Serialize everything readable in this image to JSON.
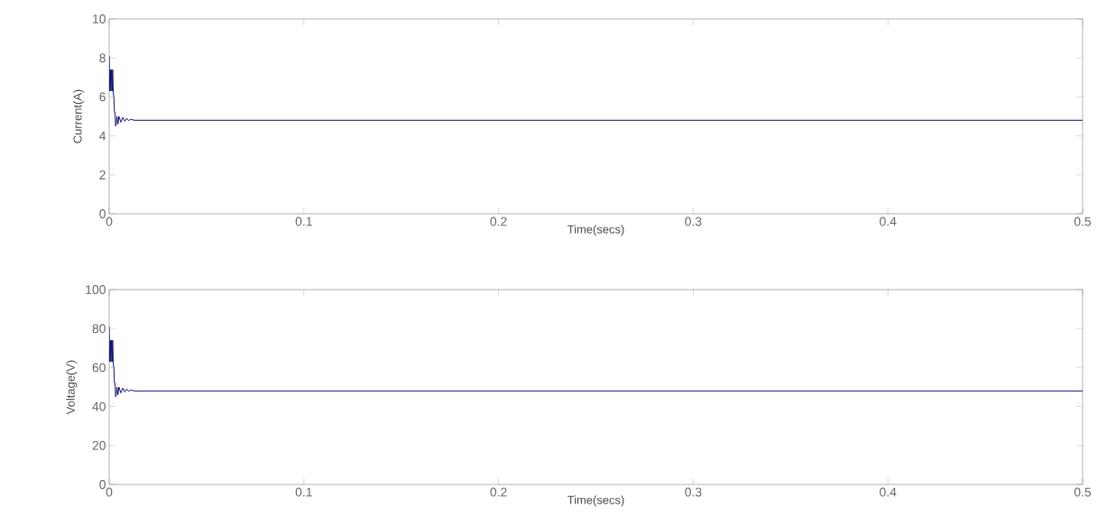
{
  "chart_data": [
    {
      "type": "line",
      "xlabel": "Time(secs)",
      "ylabel": "Current(A)",
      "xlim": [
        0,
        0.5
      ],
      "ylim": [
        0,
        10
      ],
      "xticks": [
        0,
        0.1,
        0.2,
        0.3,
        0.4,
        0.5
      ],
      "yticks": [
        0,
        2,
        4,
        6,
        8,
        10
      ],
      "grid": false,
      "x": [
        0,
        0.0003,
        0.0006,
        0.0009,
        0.0012,
        0.0015,
        0.0018,
        0.0021,
        0.0024,
        0.0027,
        0.003,
        0.0033,
        0.0036,
        0.004,
        0.0045,
        0.005,
        0.006,
        0.007,
        0.008,
        0.009,
        0.01,
        0.011,
        0.013,
        0.018,
        0.5
      ],
      "series": [
        {
          "color": "#10106e",
          "values": [
            8.1,
            6.3,
            7.4,
            6.3,
            7.4,
            6.3,
            7.4,
            6.2,
            6.0,
            5.2,
            5.2,
            4.5,
            4.6,
            5.0,
            4.6,
            5.0,
            4.7,
            4.95,
            4.75,
            4.9,
            4.78,
            4.85,
            4.8,
            4.8,
            4.8
          ]
        }
      ]
    },
    {
      "type": "line",
      "xlabel": "Time(secs)",
      "ylabel": "Voltage(V)",
      "xlim": [
        0,
        0.5
      ],
      "ylim": [
        0,
        100
      ],
      "xticks": [
        0,
        0.1,
        0.2,
        0.3,
        0.4,
        0.5
      ],
      "yticks": [
        0,
        20,
        40,
        60,
        80,
        100
      ],
      "grid": false,
      "x": [
        0,
        0.0003,
        0.0006,
        0.0009,
        0.0012,
        0.0015,
        0.0018,
        0.0021,
        0.0024,
        0.0027,
        0.003,
        0.0033,
        0.0036,
        0.004,
        0.0045,
        0.005,
        0.006,
        0.007,
        0.008,
        0.009,
        0.01,
        0.011,
        0.013,
        0.018,
        0.5
      ],
      "series": [
        {
          "color": "#10106e",
          "values": [
            81,
            63,
            74,
            63,
            74,
            63,
            74,
            62,
            60,
            52,
            52,
            45,
            46,
            50,
            46,
            50,
            47,
            49.5,
            47.5,
            49,
            47.8,
            48.5,
            48,
            48,
            48
          ]
        }
      ]
    }
  ]
}
